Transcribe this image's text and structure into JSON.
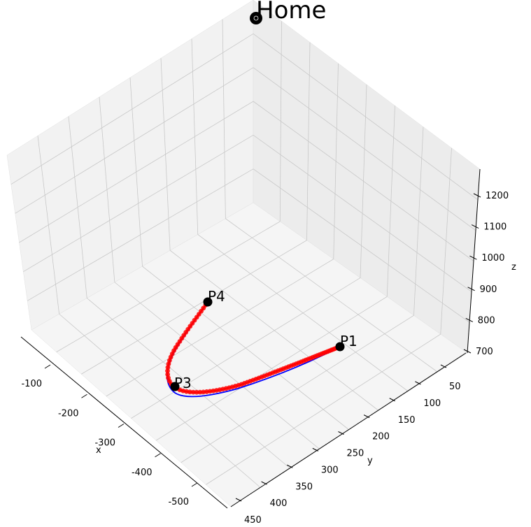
{
  "chart_data": {
    "type": "line3d",
    "title": "Home",
    "xlabel": "x",
    "ylabel": "y",
    "zlabel": "z",
    "x_ticks": [
      -100,
      -200,
      -300,
      -400,
      -500
    ],
    "y_ticks": [
      50,
      100,
      150,
      200,
      250,
      300,
      350,
      400,
      450
    ],
    "z_ticks": [
      700,
      800,
      900,
      1000,
      1100,
      1200
    ],
    "points": [
      {
        "label": "P1"
      },
      {
        "label": "P3"
      },
      {
        "label": "P4"
      },
      {
        "label": "Home"
      }
    ],
    "series": [
      {
        "color": "#0000ff"
      },
      {
        "color": "#ff0000"
      }
    ],
    "colors": {
      "pane": "#f2f2f2",
      "grid": "#c8c8c8",
      "point": "#000000"
    }
  }
}
